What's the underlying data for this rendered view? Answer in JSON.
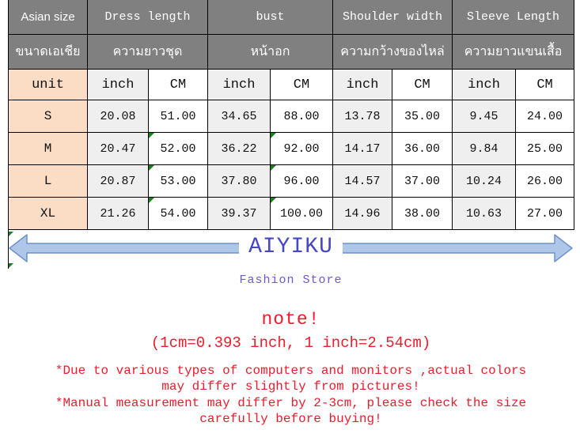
{
  "table": {
    "header_en": {
      "col0": "Asian size",
      "groups": [
        "Dress length",
        "bust",
        "Shoulder width",
        "Sleeve Length"
      ]
    },
    "header_th": {
      "col0": "ขนาดเอเชีย",
      "groups": [
        "ความยาวชุด",
        "หน้าอก",
        "ความกว้างของไหล่",
        "ความยาวแขนเสื้อ"
      ]
    },
    "unit_row": {
      "label": "unit",
      "units": [
        "inch",
        "CM",
        "inch",
        "CM",
        "inch",
        "CM",
        "inch",
        "CM"
      ]
    },
    "rows": [
      {
        "size": "S",
        "values": [
          "20.08",
          "51.00",
          "34.65",
          "88.00",
          "13.78",
          "35.00",
          "9.45",
          "24.00"
        ],
        "flagged": []
      },
      {
        "size": "M",
        "values": [
          "20.47",
          "52.00",
          "36.22",
          "92.00",
          "14.17",
          "36.00",
          "9.84",
          "25.00"
        ],
        "flagged": [
          1,
          3
        ]
      },
      {
        "size": "L",
        "values": [
          "20.87",
          "53.00",
          "37.80",
          "96.00",
          "14.57",
          "37.00",
          "10.24",
          "26.00"
        ],
        "flagged": [
          1,
          3
        ]
      },
      {
        "size": "XL",
        "values": [
          "21.26",
          "54.00",
          "39.37",
          "100.00",
          "14.96",
          "38.00",
          "10.63",
          "27.00"
        ],
        "flagged": [
          1,
          3
        ]
      }
    ]
  },
  "banner": {
    "brand": "AIYIKU",
    "subtitle": "Fashion Store"
  },
  "notes": {
    "title": "note!",
    "conversion": "(1cm=0.393 inch, 1 inch=2.54cm)",
    "note1_line1": "*Due to various types of computers and monitors ,actual colors",
    "note1_line2": "may differ slightly from pictures!",
    "note2_line1": "*Manual measurement may differ by 2-3cm, please check the size",
    "note2_line2": "carefully before  buying!"
  },
  "colors": {
    "header_gray": "#808080",
    "first_column_peach": "#fbdcc5",
    "inch_column_shade": "#efefef",
    "arrow_fill": "#aec6e8",
    "arrow_stroke": "#6e93c6",
    "brand_blue": "#4547c8",
    "subtitle_purple": "#6a5acd",
    "note_red": "#ed1c2d",
    "flag_green": "#1e7d1e"
  }
}
